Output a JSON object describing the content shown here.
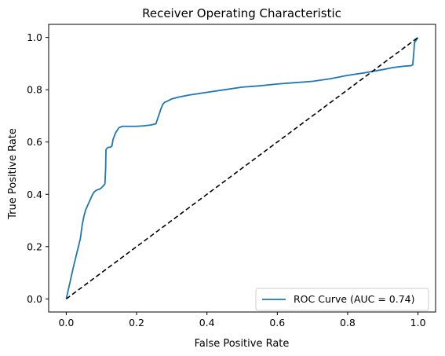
{
  "chart_data": {
    "type": "line",
    "title": "Receiver Operating Characteristic",
    "xlabel": "False Positive Rate",
    "ylabel": "True Positive Rate",
    "xlim": [
      -0.05,
      1.05
    ],
    "ylim": [
      -0.05,
      1.05
    ],
    "x_ticks": [
      0.0,
      0.2,
      0.4,
      0.6,
      0.8,
      1.0
    ],
    "x_tick_labels": [
      "0.0",
      "0.2",
      "0.4",
      "0.6",
      "0.8",
      "1.0"
    ],
    "y_ticks": [
      0.0,
      0.2,
      0.4,
      0.6,
      0.8,
      1.0
    ],
    "y_tick_labels": [
      "0.0",
      "0.2",
      "0.4",
      "0.6",
      "0.8",
      "1.0"
    ],
    "grid": false,
    "legend_position": "lower-right",
    "series": [
      {
        "name": "ROC Curve (AUC = 0.74)",
        "color": "#1f77b4",
        "style": "solid",
        "x": [
          0.0,
          0.01,
          0.02,
          0.03,
          0.04,
          0.045,
          0.05,
          0.055,
          0.06,
          0.065,
          0.07,
          0.075,
          0.08,
          0.085,
          0.09,
          0.095,
          0.1,
          0.105,
          0.11,
          0.112,
          0.113,
          0.115,
          0.12,
          0.125,
          0.13,
          0.133,
          0.136,
          0.14,
          0.145,
          0.15,
          0.16,
          0.18,
          0.2,
          0.22,
          0.24,
          0.255,
          0.26,
          0.265,
          0.27,
          0.275,
          0.28,
          0.285,
          0.29,
          0.3,
          0.32,
          0.35,
          0.4,
          0.45,
          0.5,
          0.55,
          0.6,
          0.65,
          0.7,
          0.75,
          0.8,
          0.85,
          0.9,
          0.93,
          0.96,
          0.98,
          0.985,
          0.988,
          0.99,
          1.0
        ],
        "y": [
          0.0,
          0.06,
          0.12,
          0.175,
          0.23,
          0.28,
          0.315,
          0.34,
          0.355,
          0.37,
          0.385,
          0.4,
          0.41,
          0.415,
          0.418,
          0.42,
          0.425,
          0.432,
          0.44,
          0.5,
          0.57,
          0.575,
          0.58,
          0.58,
          0.585,
          0.61,
          0.62,
          0.635,
          0.645,
          0.655,
          0.66,
          0.66,
          0.66,
          0.662,
          0.665,
          0.67,
          0.69,
          0.71,
          0.73,
          0.745,
          0.752,
          0.755,
          0.758,
          0.765,
          0.772,
          0.78,
          0.79,
          0.8,
          0.81,
          0.815,
          0.822,
          0.827,
          0.832,
          0.842,
          0.855,
          0.865,
          0.877,
          0.885,
          0.89,
          0.892,
          0.895,
          0.94,
          0.98,
          1.0
        ]
      },
      {
        "color": "#000000",
        "style": "dashed",
        "x": [
          0.0,
          1.0
        ],
        "y": [
          0.0,
          1.0
        ]
      }
    ]
  }
}
